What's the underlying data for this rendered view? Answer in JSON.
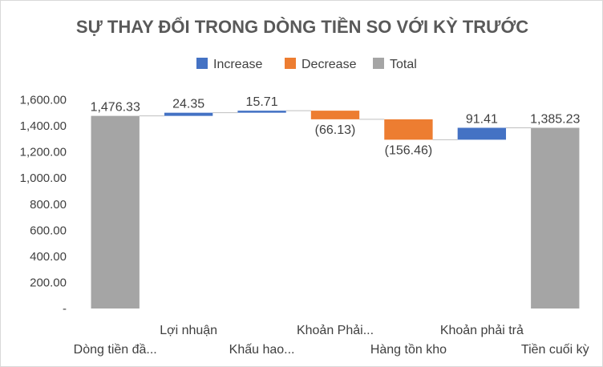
{
  "chart_data": {
    "type": "waterfall",
    "title": "SỰ THAY ĐỔI TRONG DÒNG TIỀN SO VỚI KỲ TRƯỚC",
    "legend": {
      "position": "top",
      "entries": [
        {
          "key": "increase",
          "label": "Increase",
          "color": "#4472c4"
        },
        {
          "key": "decrease",
          "label": "Decrease",
          "color": "#ed7d31"
        },
        {
          "key": "total",
          "label": "Total",
          "color": "#a5a5a5"
        }
      ]
    },
    "ylim": [
      0,
      1600
    ],
    "yticks": [
      0,
      200,
      400,
      600,
      800,
      1000,
      1200,
      1400,
      1600
    ],
    "ytick_labels": [
      "-",
      "200.00",
      "400.00",
      "600.00",
      "800.00",
      "1,000.00",
      "1,200.00",
      "1,400.00",
      "1,600.00"
    ],
    "grid": false,
    "connector_lines": true,
    "categories": [
      {
        "label": "Dòng tiền đầ...",
        "value": 1476.33,
        "kind": "total",
        "data_label": "1,476.33"
      },
      {
        "label": "Lợi nhuận",
        "value": 24.35,
        "kind": "increase",
        "data_label": "24.35"
      },
      {
        "label": "Khấu hao...",
        "value": 15.71,
        "kind": "increase",
        "data_label": "15.71"
      },
      {
        "label": "Khoản Phải...",
        "value": -66.13,
        "kind": "decrease",
        "data_label": "(66.13)"
      },
      {
        "label": "Hàng tồn kho",
        "value": -156.46,
        "kind": "decrease",
        "data_label": "(156.46)"
      },
      {
        "label": "Khoản phải trả",
        "value": 91.41,
        "kind": "increase",
        "data_label": "91.41"
      },
      {
        "label": "Tiền cuối kỳ",
        "value": 1385.23,
        "kind": "total",
        "data_label": "1,385.23"
      }
    ]
  }
}
